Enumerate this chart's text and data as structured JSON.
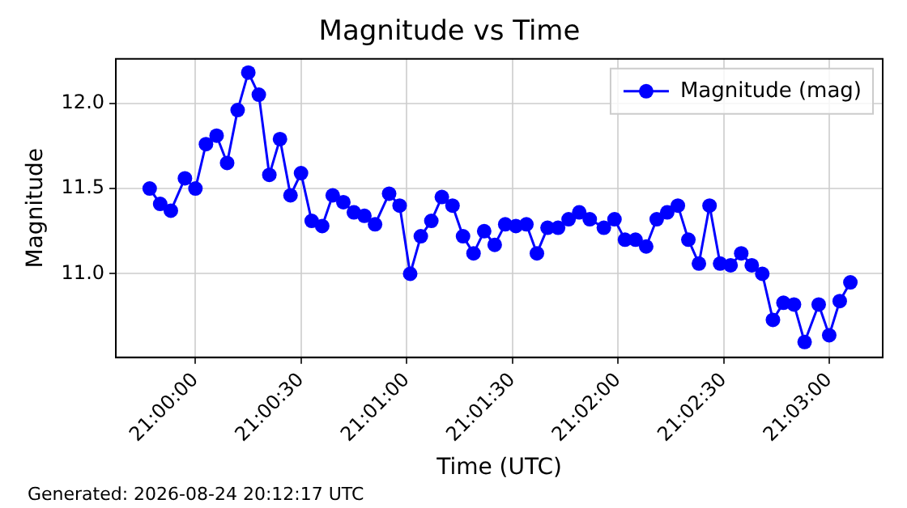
{
  "chart_data": {
    "type": "line",
    "title": "Magnitude vs Time",
    "xlabel": "Time (UTC)",
    "ylabel": "Magnitude",
    "annotations": [
      "Generated: 2026-08-24 20:12:17 UTC"
    ],
    "x": [
      20.99639,
      20.99722,
      20.99806,
      20.99917,
      21,
      21.00083,
      21.00167,
      21.0025,
      21.00333,
      21.00417,
      21.005,
      21.00583,
      21.00667,
      21.0075,
      21.00833,
      21.00917,
      21.01,
      21.01083,
      21.01167,
      21.0125,
      21.01333,
      21.01417,
      21.01528,
      21.01611,
      21.01694,
      21.01778,
      21.01861,
      21.01944,
      21.02028,
      21.02111,
      21.02194,
      21.02278,
      21.02361,
      21.02444,
      21.02528,
      21.02611,
      21.02694,
      21.02778,
      21.02861,
      21.02944,
      21.03028,
      21.03111,
      21.03222,
      21.03306,
      21.03389,
      21.03472,
      21.03556,
      21.03639,
      21.03722,
      21.03806,
      21.03889,
      21.03972,
      21.04056,
      21.04139,
      21.04222,
      21.04306,
      21.04389,
      21.04472,
      21.04556,
      21.04639,
      21.04722,
      21.04806,
      21.04917,
      21.05,
      21.05083,
      21.05167
    ],
    "series": [
      {
        "name": "Magnitude (mag)",
        "color": "#0000ff",
        "values": [
          11.5,
          11.41,
          11.37,
          11.56,
          11.5,
          11.76,
          11.81,
          11.65,
          11.96,
          12.18,
          12.05,
          11.58,
          11.79,
          11.46,
          11.59,
          11.31,
          11.28,
          11.46,
          11.42,
          11.36,
          11.34,
          11.29,
          11.47,
          11.4,
          11.0,
          11.22,
          11.31,
          11.45,
          11.4,
          11.22,
          11.12,
          11.25,
          11.17,
          11.29,
          11.28,
          11.29,
          11.12,
          11.27,
          11.27,
          11.32,
          11.36,
          11.32,
          11.27,
          11.32,
          11.2,
          11.2,
          11.16,
          11.32,
          11.36,
          11.4,
          11.2,
          11.06,
          11.4,
          11.06,
          11.05,
          11.12,
          11.05,
          11.0,
          10.73,
          10.83,
          10.82,
          10.6,
          10.82,
          10.64,
          10.84,
          10.95
        ]
      }
    ],
    "xlim": [
      20.99372,
      21.05422
    ],
    "xticks": [
      {
        "value": 21,
        "label": "21:00:00"
      },
      {
        "value": 21.00833,
        "label": "21:00:30"
      },
      {
        "value": 21.01667,
        "label": "21:01:00"
      },
      {
        "value": 21.025,
        "label": "21:01:30"
      },
      {
        "value": 21.03333,
        "label": "21:02:00"
      },
      {
        "value": 21.04167,
        "label": "21:02:30"
      },
      {
        "value": 21.05,
        "label": "21:03:00"
      }
    ],
    "ylim": [
      10.51,
      12.26
    ],
    "yticks": [
      {
        "value": 11,
        "label": "11.0"
      },
      {
        "value": 11.5,
        "label": "11.5"
      },
      {
        "value": 12,
        "label": "12.0"
      }
    ],
    "grid": true,
    "legend": "top right",
    "marker": "circle",
    "line_style": "solid"
  }
}
